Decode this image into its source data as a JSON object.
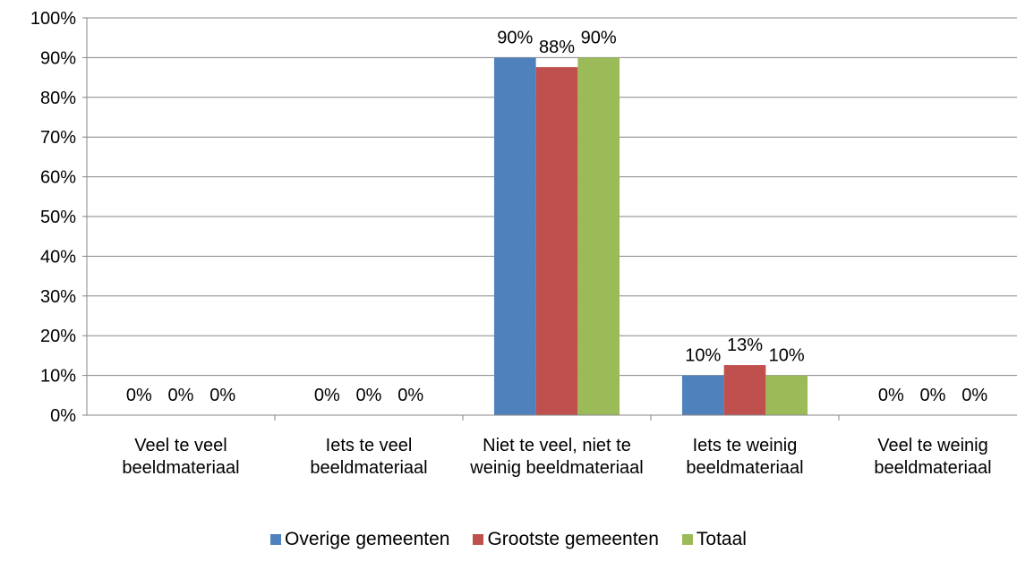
{
  "chart_data": {
    "type": "bar",
    "categories": [
      "Veel te veel beeldmateriaal",
      "Iets te veel beeldmateriaal",
      "Niet te veel, niet te weinig beeldmateriaal",
      "Iets te weinig beeldmateriaal",
      "Veel te weinig beeldmateriaal"
    ],
    "series": [
      {
        "name": "Overige gemeenten",
        "color": "#4f81bd",
        "values": [
          0,
          0,
          90,
          10,
          0
        ],
        "value_labels": [
          "0%",
          "0%",
          "90%",
          "10%",
          "0%"
        ]
      },
      {
        "name": "Grootste gemeenten",
        "color": "#c0504d",
        "values": [
          0,
          0,
          87.6,
          12.6,
          0
        ],
        "value_labels": [
          "0%",
          "0%",
          "88%",
          "13%",
          "0%"
        ]
      },
      {
        "name": "Totaal",
        "color": "#9bbb59",
        "values": [
          0,
          0,
          90,
          10,
          0
        ],
        "value_labels": [
          "0%",
          "0%",
          "90%",
          "10%",
          "0%"
        ]
      }
    ],
    "ylim": [
      0,
      100
    ],
    "yticks": [
      {
        "value": 0,
        "label": "0%"
      },
      {
        "value": 10,
        "label": "10%"
      },
      {
        "value": 20,
        "label": "20%"
      },
      {
        "value": 30,
        "label": "30%"
      },
      {
        "value": 40,
        "label": "40%"
      },
      {
        "value": 50,
        "label": "50%"
      },
      {
        "value": 60,
        "label": "60%"
      },
      {
        "value": 70,
        "label": "70%"
      },
      {
        "value": 80,
        "label": "80%"
      },
      {
        "value": 90,
        "label": "90%"
      },
      {
        "value": 100,
        "label": "100%"
      }
    ],
    "grid": true,
    "legend": "bottom"
  }
}
